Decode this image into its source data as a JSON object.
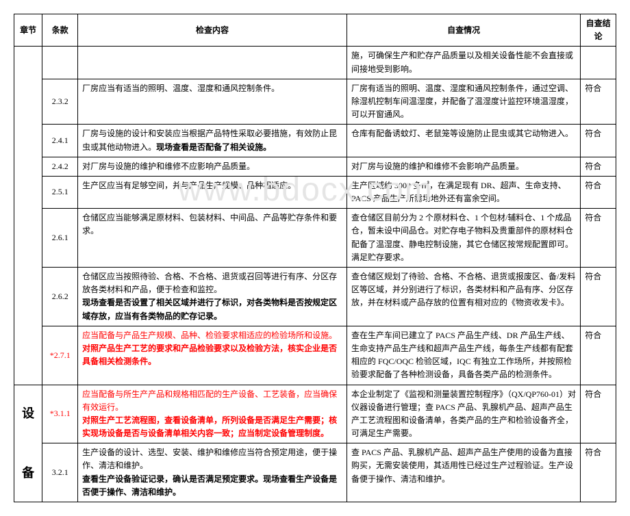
{
  "watermark": "www.bdocx.com",
  "headers": {
    "chapter": "章节",
    "clause": "条款",
    "check": "检查内容",
    "status": "自查情况",
    "result": "自查结论"
  },
  "rows": [
    {
      "chapter": "",
      "clause": "",
      "check": "",
      "status": "施，可确保生产和贮存产品质量以及相关设备性能不会直接或间接地受到影响。",
      "result": ""
    },
    {
      "clause": "2.3.2",
      "check": "厂房应当有适当的照明、温度、湿度和通风控制条件。",
      "status": "厂房有适当的照明、温度、湿度和通风控制条件，通过空调、除湿机控制车间温湿度，并配备了温湿度计监控环境温湿度，可以开窗通风。",
      "result": "符合"
    },
    {
      "clause": "2.4.1",
      "check_plain": "厂房与设施的设计和安装应当根据产品特性采取必要措施，有效防止昆虫或其他动物进入。",
      "check_bold": "现场查看是否配备了相关设施。",
      "status": "仓库有配备诱蚊灯、老鼠笼等设施防止昆虫或其它动物进入。",
      "result": "符合"
    },
    {
      "clause": "2.4.2",
      "check": "对厂房与设施的维护和维修不应影响产品质量。",
      "status": "对厂房与设施的维护和维修不会影响产品质量。",
      "result": "符合"
    },
    {
      "clause": "2.5.1",
      "check": "生产区应当有足够空间，并与产品生产规模、品种相适应。",
      "status": "生产区域约 3000 多㎡，在满足现有 DR、超声、生命支持、PACS 产品生产所需场地外还有富余空间。",
      "result": "符合"
    },
    {
      "clause": "2.6.1",
      "check": "仓储区应当能够满足原材料、包装材料、中间品、产品等贮存条件和要求。",
      "status": "查仓储区目前分为 2 个原材料仓、1 个包材/辅料仓、1 个成品仓，暂未设中间品仓。对贮存电子物料及贵重部件的原材料仓配备了温湿度、静电控制设施，其它仓储区按常规配置即可。满足贮存要求。",
      "result": "符合"
    },
    {
      "clause": "2.6.2",
      "check_plain": "仓储区应当按照待验、合格、不合格、退货或召回等进行有序、分区存放各类材料和产品，便于检查和监控。",
      "check_bold": "现场查看是否设置了相关区域并进行了标识，对各类物料是否按规定区域存放，应当有各类物品的贮存记录。",
      "status": "查仓储区规划了待验、合格、不合格、退货或报废区、备/发料区等区域，并分别进行了标识，各类材料和产品有序、分区存放，并在材料或产品存放的位置有相对应的《物资收发卡》。",
      "result": "符合"
    },
    {
      "clause": "*2.7.1",
      "clause_red": true,
      "check_red1": "应当配备与产品生产规模、品种、检验要求相适应的检验场所和设施。",
      "check_red_bold": "对照产品生产工艺的要求和产品检验要求以及检验方法，核实企业是否具备相关检测条件。",
      "status": "查在生产车间已建立了 PACS 产品生产线、DR 产品生产线、生命支持产品生产线和超声产品生产线，每条生产线都有配套相应的 FQC/OQC 检验区域，IQC 有独立工作场所，并按照检验要求配备了各种检测设备，具备各类产品的检测条件。",
      "result": "符合"
    },
    {
      "chapter_start": true,
      "chapter": "设备",
      "clause": "*3.1.1",
      "clause_red": true,
      "check_red1": "应当配备与所生产产品和规格相匹配的生产设备、工艺装备，应当确保有效运行。",
      "check_red_bold": "对照生产工艺流程图，查看设备清单，所列设备是否满足生产需要；核实现场设备是否与设备清单相关内容一致；应当制定设备管理制度。",
      "status": "本企业制定了《监视和测量装置控制程序》（QX/QP760-01）对仪器设备进行管理；查 PACS 产品、乳腺机产品、超声产品生产工艺流程图和设备清单，各类产品的生产和检验设备齐全，可满足生产需要。",
      "result": "符合"
    },
    {
      "clause": "3.2.1",
      "check_plain": "生产设备的设计、选型、安装、维护和维修应当符合预定用途，便于操作、清洁和维护。",
      "check_bold": "查看生产设备验证记录，确认是否满足预定要求。现场查看生产设备是否便于操作、清洁和维护。",
      "status": "查 PACS 产品、乳腺机产品、超声产品生产使用的设备为直接购买，无需安装使用，其适用性已经过生产过程验证。生产设备便于操作、清洁和维护。",
      "result": "符合"
    }
  ]
}
